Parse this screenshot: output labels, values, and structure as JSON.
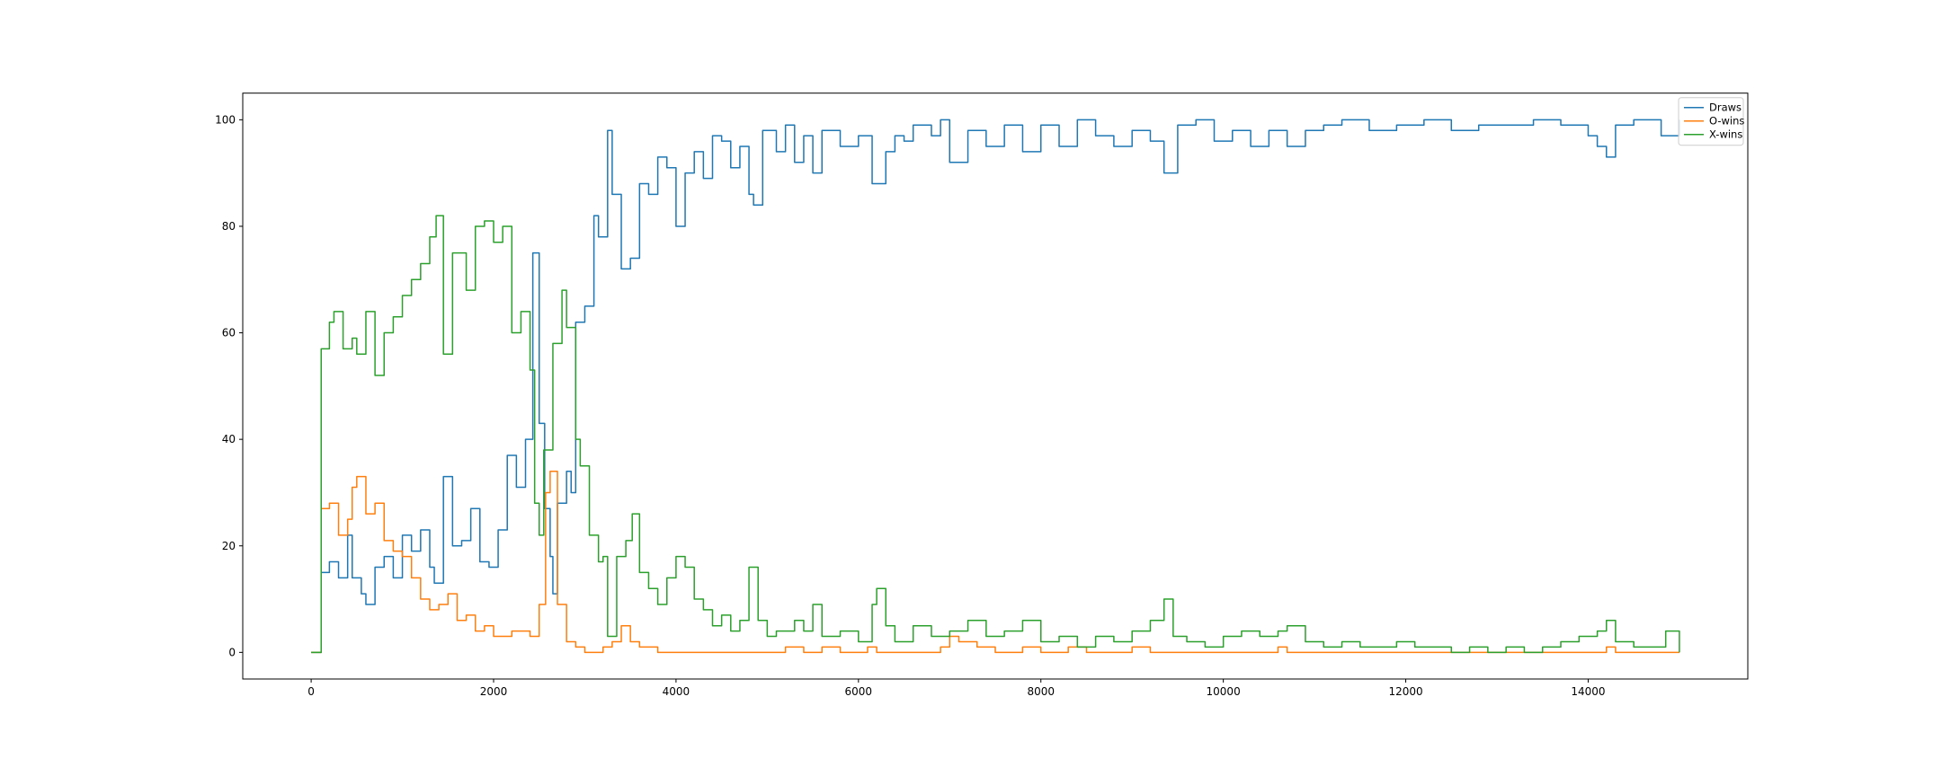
{
  "chart_data": {
    "type": "line",
    "title": "",
    "xlabel": "",
    "ylabel": "",
    "xlim": [
      -750,
      15750
    ],
    "ylim": [
      -5,
      105
    ],
    "xticks": [
      0,
      2000,
      4000,
      6000,
      8000,
      10000,
      12000,
      14000
    ],
    "yticks": [
      0,
      20,
      40,
      60,
      80,
      100
    ],
    "grid": false,
    "legend_position": "top-right",
    "series": [
      {
        "name": "Draws",
        "color": "#1f77b4",
        "points": [
          [
            0,
            0
          ],
          [
            100,
            0
          ],
          [
            110,
            15
          ],
          [
            200,
            17
          ],
          [
            300,
            14
          ],
          [
            400,
            22
          ],
          [
            450,
            14
          ],
          [
            550,
            11
          ],
          [
            600,
            9
          ],
          [
            700,
            16
          ],
          [
            800,
            18
          ],
          [
            900,
            14
          ],
          [
            1000,
            22
          ],
          [
            1100,
            19
          ],
          [
            1200,
            23
          ],
          [
            1300,
            16
          ],
          [
            1350,
            13
          ],
          [
            1450,
            33
          ],
          [
            1550,
            20
          ],
          [
            1650,
            21
          ],
          [
            1750,
            27
          ],
          [
            1850,
            17
          ],
          [
            1950,
            16
          ],
          [
            2050,
            23
          ],
          [
            2150,
            37
          ],
          [
            2250,
            31
          ],
          [
            2350,
            40
          ],
          [
            2430,
            75
          ],
          [
            2500,
            43
          ],
          [
            2560,
            27
          ],
          [
            2620,
            18
          ],
          [
            2650,
            11
          ],
          [
            2700,
            28
          ],
          [
            2800,
            34
          ],
          [
            2850,
            30
          ],
          [
            2900,
            62
          ],
          [
            3000,
            65
          ],
          [
            3100,
            82
          ],
          [
            3150,
            78
          ],
          [
            3250,
            98
          ],
          [
            3300,
            86
          ],
          [
            3400,
            72
          ],
          [
            3500,
            74
          ],
          [
            3600,
            88
          ],
          [
            3700,
            86
          ],
          [
            3800,
            93
          ],
          [
            3900,
            91
          ],
          [
            4000,
            80
          ],
          [
            4100,
            90
          ],
          [
            4200,
            94
          ],
          [
            4300,
            89
          ],
          [
            4400,
            97
          ],
          [
            4500,
            96
          ],
          [
            4600,
            91
          ],
          [
            4700,
            95
          ],
          [
            4800,
            86
          ],
          [
            4850,
            84
          ],
          [
            4950,
            98
          ],
          [
            5100,
            94
          ],
          [
            5200,
            99
          ],
          [
            5300,
            92
          ],
          [
            5400,
            97
          ],
          [
            5500,
            90
          ],
          [
            5600,
            98
          ],
          [
            5800,
            95
          ],
          [
            6000,
            97
          ],
          [
            6150,
            88
          ],
          [
            6300,
            94
          ],
          [
            6400,
            97
          ],
          [
            6500,
            96
          ],
          [
            6600,
            99
          ],
          [
            6800,
            97
          ],
          [
            6900,
            100
          ],
          [
            7000,
            92
          ],
          [
            7200,
            98
          ],
          [
            7400,
            95
          ],
          [
            7600,
            99
          ],
          [
            7800,
            94
          ],
          [
            8000,
            99
          ],
          [
            8200,
            95
          ],
          [
            8400,
            100
          ],
          [
            8600,
            97
          ],
          [
            8800,
            95
          ],
          [
            9000,
            98
          ],
          [
            9200,
            96
          ],
          [
            9350,
            90
          ],
          [
            9500,
            99
          ],
          [
            9700,
            100
          ],
          [
            9900,
            96
          ],
          [
            10100,
            98
          ],
          [
            10300,
            95
          ],
          [
            10500,
            98
          ],
          [
            10700,
            95
          ],
          [
            10900,
            98
          ],
          [
            11100,
            99
          ],
          [
            11300,
            100
          ],
          [
            11600,
            98
          ],
          [
            11900,
            99
          ],
          [
            12200,
            100
          ],
          [
            12500,
            98
          ],
          [
            12800,
            99
          ],
          [
            13100,
            99
          ],
          [
            13400,
            100
          ],
          [
            13700,
            99
          ],
          [
            14000,
            97
          ],
          [
            14100,
            95
          ],
          [
            14200,
            93
          ],
          [
            14300,
            99
          ],
          [
            14500,
            100
          ],
          [
            14800,
            97
          ],
          [
            15000,
            100
          ]
        ]
      },
      {
        "name": "O-wins",
        "color": "#ff7f0e",
        "points": [
          [
            0,
            0
          ],
          [
            100,
            0
          ],
          [
            110,
            27
          ],
          [
            200,
            28
          ],
          [
            300,
            22
          ],
          [
            400,
            25
          ],
          [
            450,
            31
          ],
          [
            500,
            33
          ],
          [
            600,
            26
          ],
          [
            700,
            28
          ],
          [
            800,
            21
          ],
          [
            900,
            19
          ],
          [
            1000,
            18
          ],
          [
            1100,
            14
          ],
          [
            1200,
            10
          ],
          [
            1300,
            8
          ],
          [
            1400,
            9
          ],
          [
            1500,
            11
          ],
          [
            1600,
            6
          ],
          [
            1700,
            7
          ],
          [
            1800,
            4
          ],
          [
            1900,
            5
          ],
          [
            2000,
            3
          ],
          [
            2100,
            3
          ],
          [
            2200,
            4
          ],
          [
            2300,
            4
          ],
          [
            2400,
            3
          ],
          [
            2500,
            9
          ],
          [
            2570,
            30
          ],
          [
            2620,
            34
          ],
          [
            2700,
            9
          ],
          [
            2800,
            2
          ],
          [
            2900,
            1
          ],
          [
            3000,
            0
          ],
          [
            3200,
            1
          ],
          [
            3300,
            2
          ],
          [
            3400,
            5
          ],
          [
            3500,
            2
          ],
          [
            3600,
            1
          ],
          [
            3700,
            1
          ],
          [
            3800,
            0
          ],
          [
            5000,
            0
          ],
          [
            5200,
            1
          ],
          [
            5400,
            0
          ],
          [
            5600,
            1
          ],
          [
            5800,
            0
          ],
          [
            6000,
            0
          ],
          [
            6100,
            1
          ],
          [
            6200,
            0
          ],
          [
            6400,
            0
          ],
          [
            6900,
            1
          ],
          [
            7000,
            3
          ],
          [
            7100,
            2
          ],
          [
            7300,
            1
          ],
          [
            7500,
            0
          ],
          [
            7800,
            1
          ],
          [
            8000,
            0
          ],
          [
            8300,
            1
          ],
          [
            8500,
            0
          ],
          [
            9000,
            1
          ],
          [
            9200,
            0
          ],
          [
            10000,
            0
          ],
          [
            10600,
            1
          ],
          [
            10700,
            0
          ],
          [
            14000,
            0
          ],
          [
            14200,
            1
          ],
          [
            14300,
            0
          ],
          [
            15000,
            0
          ]
        ]
      },
      {
        "name": "X-wins",
        "color": "#2ca02c",
        "points": [
          [
            0,
            0
          ],
          [
            100,
            0
          ],
          [
            110,
            57
          ],
          [
            200,
            62
          ],
          [
            250,
            64
          ],
          [
            350,
            57
          ],
          [
            450,
            59
          ],
          [
            500,
            56
          ],
          [
            600,
            64
          ],
          [
            700,
            52
          ],
          [
            800,
            60
          ],
          [
            900,
            63
          ],
          [
            1000,
            67
          ],
          [
            1100,
            70
          ],
          [
            1200,
            73
          ],
          [
            1300,
            78
          ],
          [
            1370,
            82
          ],
          [
            1450,
            56
          ],
          [
            1550,
            75
          ],
          [
            1700,
            68
          ],
          [
            1800,
            80
          ],
          [
            1900,
            81
          ],
          [
            2000,
            77
          ],
          [
            2100,
            80
          ],
          [
            2200,
            60
          ],
          [
            2300,
            64
          ],
          [
            2400,
            53
          ],
          [
            2450,
            28
          ],
          [
            2500,
            22
          ],
          [
            2550,
            38
          ],
          [
            2650,
            58
          ],
          [
            2750,
            68
          ],
          [
            2800,
            61
          ],
          [
            2900,
            40
          ],
          [
            2950,
            35
          ],
          [
            3050,
            22
          ],
          [
            3150,
            17
          ],
          [
            3200,
            18
          ],
          [
            3250,
            3
          ],
          [
            3350,
            18
          ],
          [
            3450,
            21
          ],
          [
            3520,
            26
          ],
          [
            3600,
            15
          ],
          [
            3700,
            12
          ],
          [
            3800,
            9
          ],
          [
            3900,
            14
          ],
          [
            4000,
            18
          ],
          [
            4100,
            16
          ],
          [
            4200,
            10
          ],
          [
            4300,
            8
          ],
          [
            4400,
            5
          ],
          [
            4500,
            7
          ],
          [
            4600,
            4
          ],
          [
            4700,
            6
          ],
          [
            4800,
            16
          ],
          [
            4900,
            6
          ],
          [
            5000,
            3
          ],
          [
            5100,
            4
          ],
          [
            5300,
            6
          ],
          [
            5400,
            4
          ],
          [
            5500,
            9
          ],
          [
            5600,
            3
          ],
          [
            5800,
            4
          ],
          [
            6000,
            2
          ],
          [
            6150,
            9
          ],
          [
            6200,
            12
          ],
          [
            6300,
            5
          ],
          [
            6400,
            2
          ],
          [
            6600,
            5
          ],
          [
            6800,
            3
          ],
          [
            7000,
            4
          ],
          [
            7200,
            6
          ],
          [
            7400,
            3
          ],
          [
            7600,
            4
          ],
          [
            7800,
            6
          ],
          [
            8000,
            2
          ],
          [
            8200,
            3
          ],
          [
            8400,
            1
          ],
          [
            8600,
            3
          ],
          [
            8800,
            2
          ],
          [
            9000,
            4
          ],
          [
            9200,
            6
          ],
          [
            9350,
            10
          ],
          [
            9450,
            3
          ],
          [
            9600,
            2
          ],
          [
            9800,
            1
          ],
          [
            10000,
            3
          ],
          [
            10200,
            4
          ],
          [
            10400,
            3
          ],
          [
            10600,
            4
          ],
          [
            10700,
            5
          ],
          [
            10900,
            2
          ],
          [
            11100,
            1
          ],
          [
            11300,
            2
          ],
          [
            11500,
            1
          ],
          [
            11700,
            1
          ],
          [
            11900,
            2
          ],
          [
            12100,
            1
          ],
          [
            12300,
            1
          ],
          [
            12500,
            0
          ],
          [
            12700,
            1
          ],
          [
            12900,
            0
          ],
          [
            13100,
            1
          ],
          [
            13300,
            0
          ],
          [
            13500,
            1
          ],
          [
            13700,
            2
          ],
          [
            13900,
            3
          ],
          [
            14100,
            4
          ],
          [
            14200,
            6
          ],
          [
            14300,
            2
          ],
          [
            14500,
            1
          ],
          [
            14700,
            1
          ],
          [
            14850,
            4
          ],
          [
            15000,
            0
          ]
        ]
      }
    ]
  }
}
